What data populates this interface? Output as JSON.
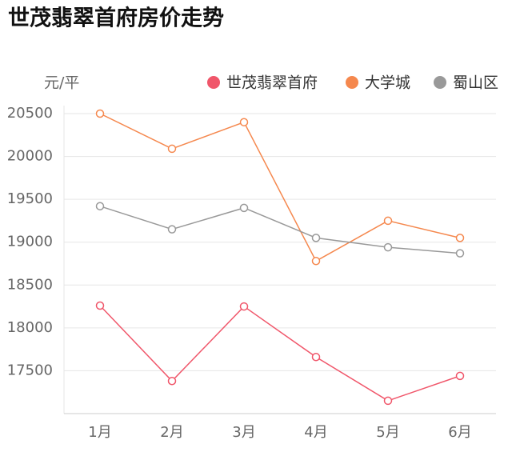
{
  "chart_data": {
    "type": "line",
    "title": "世茂翡翠首府房价走势",
    "y_label": "元/平",
    "categories": [
      "1月",
      "2月",
      "3月",
      "4月",
      "5月",
      "6月"
    ],
    "series": [
      {
        "name": "世茂翡翠首府",
        "color": "#f0566a",
        "values": [
          18260,
          17380,
          18250,
          17660,
          17150,
          17440
        ]
      },
      {
        "name": "大学城",
        "color": "#f5884e",
        "values": [
          20500,
          20090,
          20400,
          18780,
          19250,
          19050
        ]
      },
      {
        "name": "蜀山区",
        "color": "#999999",
        "values": [
          19420,
          19150,
          19400,
          19050,
          18940,
          18870
        ]
      }
    ],
    "ylim": [
      17000,
      20500
    ],
    "yticks": [
      17500,
      18000,
      18500,
      19000,
      19500,
      20000,
      20500
    ],
    "grid": true
  }
}
